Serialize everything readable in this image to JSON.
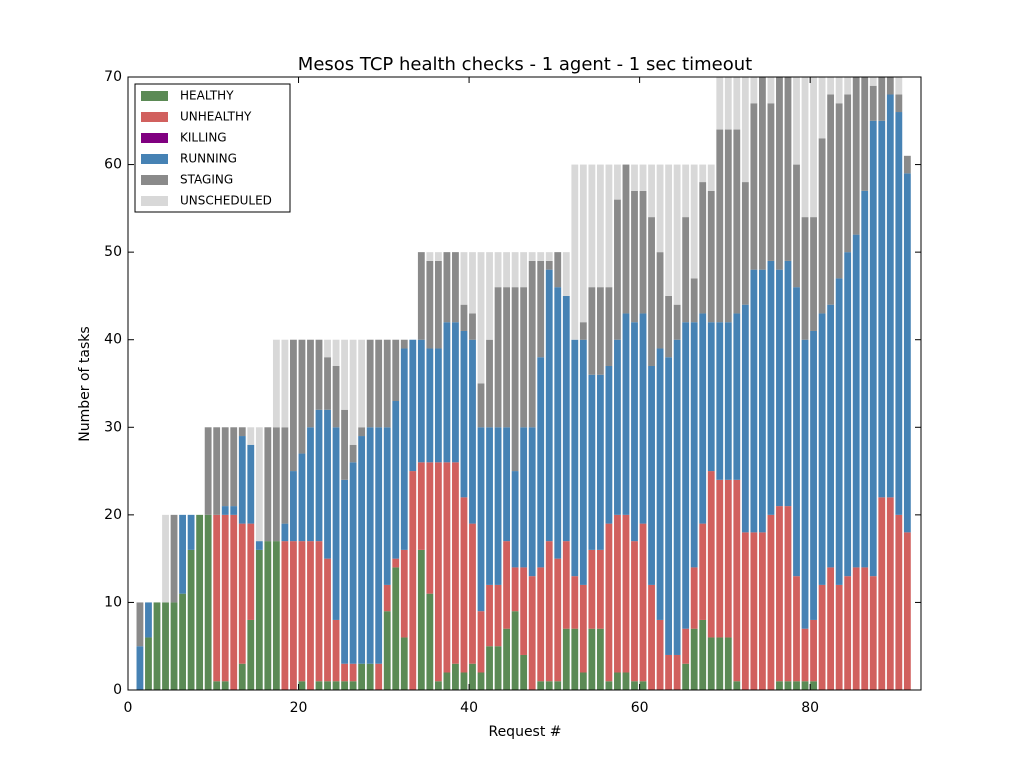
{
  "chart_data": {
    "type": "bar",
    "stacked": true,
    "title": "Mesos TCP health checks - 1 agent - 1 sec timeout",
    "x_label": "Request #",
    "y_label": "Number of tasks",
    "xlim": [
      0,
      93
    ],
    "xticks": [
      0,
      20,
      40,
      60,
      80
    ],
    "ylim": [
      0,
      70
    ],
    "yticks": [
      0,
      10,
      20,
      30,
      40,
      50,
      60,
      70
    ],
    "legend": "upper left",
    "x": [
      1,
      2,
      3,
      4,
      5,
      6,
      7,
      8,
      9,
      10,
      11,
      12,
      13,
      14,
      15,
      16,
      17,
      18,
      19,
      20,
      21,
      22,
      23,
      24,
      25,
      26,
      27,
      28,
      29,
      30,
      31,
      32,
      33,
      34,
      35,
      36,
      37,
      38,
      39,
      40,
      41,
      42,
      43,
      44,
      45,
      46,
      47,
      48,
      49,
      50,
      51,
      52,
      53,
      54,
      55,
      56,
      57,
      58,
      59,
      60,
      61,
      62,
      63,
      64,
      65,
      66,
      67,
      68,
      69,
      70,
      71,
      72,
      73,
      74,
      75,
      76,
      77,
      78,
      79,
      80,
      81,
      82,
      83,
      84,
      85,
      86,
      87,
      88,
      89,
      90,
      91
    ],
    "series": [
      {
        "name": "HEALTHY",
        "color": "#5b8a55",
        "values": [
          0,
          6,
          10,
          10,
          10,
          11,
          16,
          20,
          20,
          1,
          1,
          0,
          3,
          8,
          16,
          17,
          17,
          0,
          0,
          1,
          0,
          1,
          1,
          1,
          1,
          1,
          3,
          3,
          0,
          9,
          14,
          6,
          0,
          16,
          11,
          1,
          2,
          3,
          2,
          3,
          2,
          5,
          5,
          7,
          9,
          4,
          0,
          1,
          1,
          1,
          7,
          7,
          2,
          7,
          7,
          1,
          2,
          2,
          1,
          1,
          0,
          0,
          0,
          0,
          3,
          7,
          8,
          6,
          6,
          6,
          1,
          0,
          0,
          0,
          0,
          1,
          1,
          1,
          1,
          1,
          0,
          0,
          0,
          0,
          0,
          0,
          0,
          0,
          0,
          0,
          0
        ]
      },
      {
        "name": "UNHEALTHY",
        "color": "#d1605e",
        "values": [
          0,
          0,
          0,
          0,
          0,
          0,
          0,
          0,
          0,
          19,
          19,
          20,
          16,
          11,
          0,
          0,
          0,
          17,
          17,
          16,
          17,
          16,
          14,
          7,
          2,
          2,
          0,
          0,
          3,
          3,
          1,
          10,
          25,
          10,
          15,
          25,
          24,
          23,
          20,
          16,
          7,
          7,
          7,
          10,
          5,
          10,
          13,
          13,
          16,
          14,
          10,
          6,
          10,
          9,
          9,
          18,
          18,
          18,
          16,
          18,
          12,
          8,
          4,
          4,
          4,
          7,
          11,
          19,
          18,
          18,
          23,
          18,
          18,
          18,
          20,
          20,
          20,
          12,
          6,
          7,
          12,
          14,
          12,
          13,
          14,
          14,
          13,
          22,
          22,
          20,
          18
        ]
      },
      {
        "name": "KILLING",
        "color": "#800080",
        "values": [
          0,
          0,
          0,
          0,
          0,
          0,
          0,
          0,
          0,
          0,
          0,
          0,
          0,
          0,
          0,
          0,
          0,
          0,
          0,
          0,
          0,
          0,
          0,
          0,
          0,
          0,
          0,
          0,
          0,
          0,
          0,
          0,
          0,
          0,
          0,
          0,
          0,
          0,
          0,
          0,
          0,
          0,
          0,
          0,
          0,
          0,
          0,
          0,
          0,
          0,
          0,
          0,
          0,
          0,
          0,
          0,
          0,
          0,
          0,
          0,
          0,
          0,
          0,
          0,
          0,
          0,
          0,
          0,
          0,
          0,
          0,
          0,
          0,
          0,
          0,
          0,
          0,
          0,
          0,
          0,
          0,
          0,
          0,
          0,
          0,
          0,
          0,
          0,
          0,
          0,
          0
        ]
      },
      {
        "name": "RUNNING",
        "color": "#4682b4",
        "values": [
          5,
          4,
          0,
          0,
          0,
          9,
          4,
          0,
          0,
          0,
          1,
          1,
          10,
          9,
          1,
          0,
          0,
          2,
          8,
          10,
          13,
          15,
          17,
          22,
          21,
          23,
          26,
          27,
          27,
          18,
          18,
          23,
          15,
          14,
          13,
          13,
          16,
          16,
          19,
          21,
          21,
          18,
          18,
          13,
          11,
          16,
          17,
          24,
          31,
          31,
          28,
          27,
          28,
          20,
          20,
          18,
          20,
          23,
          25,
          24,
          25,
          31,
          34,
          36,
          35,
          28,
          24,
          17,
          18,
          18,
          19,
          26,
          30,
          30,
          29,
          27,
          28,
          33,
          33,
          33,
          31,
          30,
          35,
          37,
          38,
          43,
          52,
          43,
          46,
          46,
          41
        ]
      },
      {
        "name": "STAGING",
        "color": "#8a8a8a",
        "values": [
          5,
          0,
          0,
          0,
          10,
          0,
          0,
          0,
          10,
          10,
          9,
          9,
          1,
          0,
          0,
          13,
          13,
          11,
          15,
          13,
          10,
          8,
          6,
          7,
          8,
          2,
          1,
          10,
          10,
          10,
          7,
          1,
          0,
          10,
          10,
          10,
          8,
          8,
          3,
          3,
          5,
          10,
          16,
          16,
          21,
          16,
          19,
          11,
          1,
          4,
          0,
          0,
          2,
          10,
          10,
          9,
          16,
          17,
          15,
          14,
          17,
          11,
          7,
          4,
          12,
          5,
          15,
          15,
          22,
          22,
          21,
          14,
          19,
          22,
          18,
          22,
          21,
          14,
          14,
          13,
          20,
          24,
          20,
          18,
          18,
          13,
          4,
          5,
          2,
          2,
          2
        ]
      },
      {
        "name": "UNSCHEDULED",
        "color": "#d8d8d8",
        "values": [
          0,
          0,
          0,
          10,
          0,
          0,
          0,
          0,
          0,
          0,
          0,
          0,
          0,
          2,
          13,
          0,
          10,
          10,
          0,
          0,
          0,
          0,
          2,
          3,
          8,
          12,
          10,
          0,
          0,
          0,
          0,
          0,
          0,
          0,
          1,
          1,
          0,
          0,
          6,
          7,
          15,
          10,
          4,
          4,
          4,
          4,
          1,
          1,
          1,
          0,
          5,
          20,
          18,
          14,
          14,
          14,
          4,
          0,
          3,
          3,
          6,
          10,
          15,
          16,
          6,
          13,
          2,
          3,
          6,
          6,
          6,
          12,
          3,
          0,
          3,
          0,
          0,
          10,
          16,
          16,
          7,
          2,
          3,
          2,
          0,
          0,
          1,
          0,
          0,
          2,
          0
        ]
      }
    ]
  }
}
